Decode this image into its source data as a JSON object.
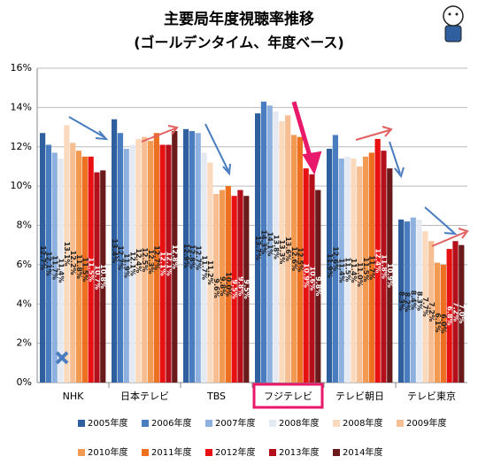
{
  "chart_data": {
    "type": "bar",
    "title": "主要局年度視聴率推移",
    "subtitle": "(ゴールデンタイム、年度ベース)",
    "categories": [
      "NHK",
      "日本テレビ",
      "TBS",
      "フジテレビ",
      "テレビ朝日",
      "テレビ東京"
    ],
    "ylim": [
      0,
      16
    ],
    "yticks": [
      {
        "value": 0,
        "label": "0%"
      },
      {
        "value": 2,
        "label": "2%"
      },
      {
        "value": 4,
        "label": "4%"
      },
      {
        "value": 6,
        "label": "6%"
      },
      {
        "value": 8,
        "label": "8%"
      },
      {
        "value": 10,
        "label": "10%"
      },
      {
        "value": 12,
        "label": "12%"
      },
      {
        "value": 14,
        "label": "14%"
      },
      {
        "value": 16,
        "label": "16%"
      }
    ],
    "grid": true,
    "series": [
      {
        "name": "2005年度",
        "color": "#2f5f9e",
        "values": [
          12.7,
          13.4,
          12.9,
          13.7,
          11.9,
          8.3
        ],
        "value_labels": [
          "12.7%",
          "13.4%",
          "12.9%",
          "13.7%",
          "11.9%",
          "8.3%"
        ]
      },
      {
        "name": "2006年度",
        "color": "#4a7dc0",
        "values": [
          12.1,
          12.7,
          12.8,
          14.3,
          12.6,
          8.2
        ],
        "value_labels": [
          "12.1%",
          "12.7%",
          "12.8%",
          "14.3%",
          "12.6%",
          "8.2%"
        ]
      },
      {
        "name": "2007年度",
        "color": "#8fb1df",
        "values": [
          11.7,
          11.9,
          12.7,
          14.1,
          11.4,
          8.4
        ],
        "value_labels": [
          "11.7%",
          "11.9%",
          "12.7%",
          "14.1%",
          "11.4%",
          "8.4%"
        ]
      },
      {
        "name": "2008年度",
        "color": "#e4e9f2",
        "values": [
          11.4,
          12.1,
          11.7,
          13.8,
          11.5,
          8.3
        ],
        "value_labels": [
          "11.4%",
          "12.1%",
          "11.7%",
          "13.8%",
          "11.5%",
          "8.3%"
        ]
      },
      {
        "name": "2008年度",
        "color": "#fbd9bc",
        "values": [
          13.1,
          12.4,
          11.2,
          13.3,
          11.4,
          7.7
        ],
        "value_labels": [
          "13.1%",
          "12.4%",
          "11.2%",
          "13.3%",
          "11.4%",
          "7.7%"
        ]
      },
      {
        "name": "2009年度",
        "color": "#f8be93",
        "values": [
          12.2,
          12.5,
          9.6,
          13.6,
          11.0,
          7.2
        ],
        "value_labels": [
          "12.2%",
          "12.5%",
          "9.6%",
          "13.6%",
          "11.0%",
          "7.2%"
        ]
      },
      {
        "name": "2010年度",
        "color": "#f39a52",
        "values": [
          11.8,
          12.3,
          9.8,
          12.6,
          11.5,
          6.1
        ],
        "value_labels": [
          "11.8%",
          "12.3%",
          "9.8%",
          "12.6%",
          "11.5%",
          "6.1%"
        ]
      },
      {
        "name": "2011年度",
        "color": "#ec7020",
        "values": [
          11.5,
          12.7,
          10.0,
          12.5,
          11.7,
          6.0
        ],
        "value_labels": [
          "11.5%",
          "12.7%",
          "10.0%",
          "12.5%",
          "11.7%",
          "6.0%"
        ]
      },
      {
        "name": "2012年度",
        "color": "#e81010",
        "values": [
          11.5,
          12.1,
          9.5,
          10.9,
          12.4,
          6.8
        ],
        "value_labels": [
          "11.5%",
          "12.1%",
          "9.5%",
          "10.9%",
          "12.4%",
          "6.8%"
        ]
      },
      {
        "name": "2013年度",
        "color": "#b3101c",
        "values": [
          10.7,
          12.1,
          9.8,
          10.6,
          11.8,
          7.2
        ],
        "value_labels": [
          "10.7%",
          "12.1%",
          "9.8%",
          "10.6%",
          "11.8%",
          "7.2%"
        ]
      },
      {
        "name": "2014年度",
        "color": "#6a1a1a",
        "values": [
          10.8,
          12.8,
          9.5,
          9.8,
          10.9,
          7.0
        ],
        "value_labels": [
          "10.8%",
          "12.8%",
          "9.5%",
          "9.8%",
          "10.9%",
          "7.0%"
        ]
      }
    ]
  }
}
